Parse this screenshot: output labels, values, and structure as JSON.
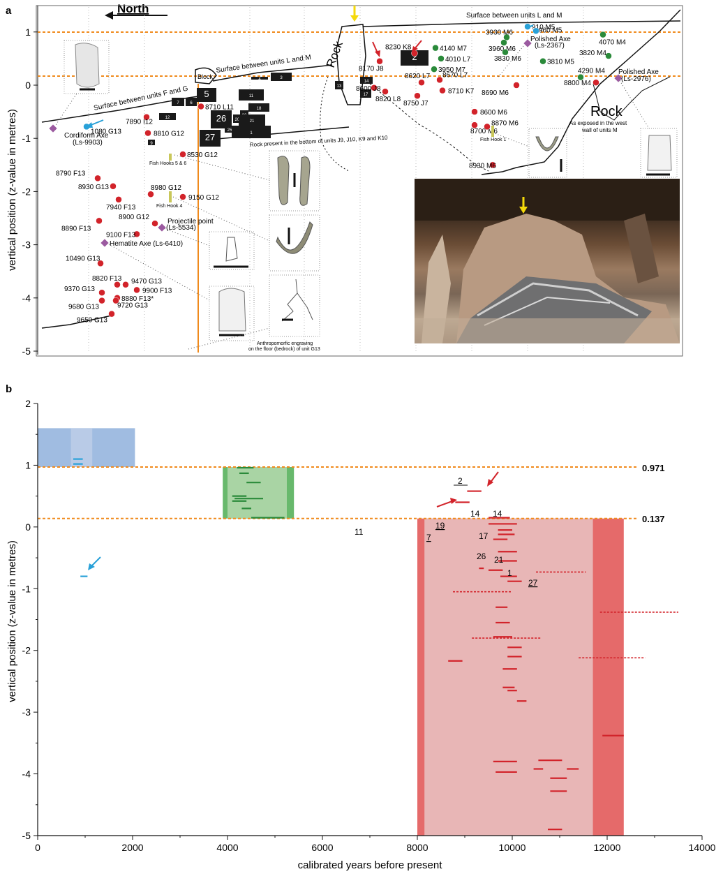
{
  "panel_a": {
    "label": "a",
    "north": "North",
    "ylabel": "vertical position (z-value in metres)",
    "yticks": [
      "1",
      "0",
      "-1",
      "-2",
      "-3",
      "-4",
      "-5"
    ],
    "surfaces": [
      "Surface between units L and M",
      "Surface between units L and M",
      "Surface between units F and G"
    ],
    "rock_labels": [
      "Rock",
      "Rock",
      "Block"
    ],
    "rock_note": "Rock present in the bottom of units J9, J10, K9 and K10",
    "rock_west": [
      "As exposed in the west",
      "wall of units M"
    ],
    "artifacts": [
      "Cordiform Axe",
      "(Ls-9903)",
      "Polished Axe",
      "(Ls-2367)",
      "Polished Axe",
      "(Ls-2976)",
      "Hematite Axe (Ls-6410)",
      "Projectile point",
      "(Ls-5534)",
      "Fish Hooks 5 & 6",
      "Fish Hook 4",
      "Fish Hook 1"
    ],
    "engraving": [
      "Anthropomorfic engraving",
      "on the floor (bedrock) of unit G13"
    ],
    "sample_labels": [
      "910 M5",
      "960 M5",
      "3930 M6",
      "3960 M6",
      "4070 M4",
      "3820 M4",
      "3830 M6",
      "3810 M5",
      "4290 M4",
      "8800 M4",
      "4140 M7",
      "4010 L7",
      "3950 M7",
      "8230 K8",
      "8170 J8",
      "8620 L7",
      "8670 L7",
      "8600 J8",
      "8820 L8",
      "8750 J7",
      "8710 K7",
      "8690 M6",
      "8600 M6",
      "8700 M6",
      "8870 M6",
      "8930 M6",
      "1080 G13",
      "7890 I12",
      "8810 G12",
      "8710 L11",
      "8530 G12",
      "8790 F13",
      "8930 G13",
      "7940 F13",
      "8980 G12",
      "9150 G12",
      "8900 G12",
      "8890 F13",
      "9100 F13",
      "10490 G13",
      "8820 F13",
      "9470 G13",
      "9370 G13",
      "9900 F13",
      "8880 F13*",
      "9680 G13",
      "9720 G13",
      "9650 G13"
    ],
    "block_numbers": [
      "4",
      "3",
      "13",
      "14",
      "17",
      "2",
      "11",
      "18",
      "12",
      "7",
      "6",
      "5",
      "22",
      "20",
      "21",
      "26",
      "25",
      "1",
      "9",
      "27"
    ]
  },
  "panel_b": {
    "label": "b",
    "ylabel": "vertical position (z-value in metres)",
    "xlabel": "calibrated years before present",
    "ref_lines": [
      "0.971",
      "0.137"
    ],
    "annotations": [
      "2",
      "14",
      "14",
      "19",
      "7",
      "17",
      "26",
      "21",
      "1",
      "27",
      "11"
    ]
  },
  "colors": {
    "red": "#d2232a",
    "green": "#2a8a3a",
    "blue": "#29a1d8",
    "orange": "#f08a1c",
    "purple": "#9b5aa0",
    "red_band": "#e8b6b6",
    "red_band_dark": "#e25a5a",
    "green_band": "#a9d4a4",
    "green_band_dark": "#58b15c",
    "blue_band": "#8fb0dc",
    "blue_band_light": "#b9cbe7"
  },
  "chart_data": [
    {
      "type": "scatter",
      "panel": "a",
      "title": "",
      "ylabel": "vertical position (z-value in metres)",
      "ylim": [
        -5,
        1.3
      ],
      "yticks": [
        1,
        0,
        -1,
        -2,
        -3,
        -4,
        -5
      ],
      "reference_lines_y": [
        0.971,
        0.137
      ],
      "series": [
        {
          "name": "",
          "color": "red",
          "points": [
            {
              "label": "8230 K8",
              "y": 0.6
            },
            {
              "label": "8170 J8",
              "y": 0.45
            },
            {
              "label": "8620 L7",
              "y": 0.05
            },
            {
              "label": "8670 L7",
              "y": 0.1
            },
            {
              "label": "8600 J8",
              "y": -0.05
            },
            {
              "label": "8820 L8",
              "y": -0.12
            },
            {
              "label": "8750 J7",
              "y": -0.2
            },
            {
              "label": "8710 K7",
              "y": -0.1
            },
            {
              "label": "8690 M6",
              "y": 0.0
            },
            {
              "label": "8600 M6",
              "y": -0.5
            },
            {
              "label": "8700 M6",
              "y": -0.75
            },
            {
              "label": "8870 M6",
              "y": -0.78
            },
            {
              "label": "8930 M6",
              "y": -1.5
            },
            {
              "label": "8800 M4",
              "y": 0.05
            },
            {
              "label": "7890 I12",
              "y": -0.6
            },
            {
              "label": "8810 G12",
              "y": -0.9
            },
            {
              "label": "8710 L11",
              "y": -0.4
            },
            {
              "label": "8530 G12",
              "y": -1.3
            },
            {
              "label": "8790 F13",
              "y": -1.75
            },
            {
              "label": "8930 G13",
              "y": -1.9
            },
            {
              "label": "7940 F13",
              "y": -2.15
            },
            {
              "label": "8980 G12",
              "y": -2.05
            },
            {
              "label": "9150 G12",
              "y": -2.1
            },
            {
              "label": "8900 G12",
              "y": -2.6
            },
            {
              "label": "8890 F13",
              "y": -2.55
            },
            {
              "label": "9100 F13",
              "y": -2.8
            },
            {
              "label": "10490 G13",
              "y": -3.35
            },
            {
              "label": "8820 F13",
              "y": -3.75
            },
            {
              "label": "9470 G13",
              "y": -3.75
            },
            {
              "label": "9370 G13",
              "y": -3.9
            },
            {
              "label": "9900 F13",
              "y": -3.85
            },
            {
              "label": "8880 F13*",
              "y": -4.0
            },
            {
              "label": "9680 G13",
              "y": -4.05
            },
            {
              "label": "9720 G13",
              "y": -4.05
            },
            {
              "label": "9650 G13",
              "y": -4.3
            }
          ]
        },
        {
          "name": "",
          "color": "green",
          "points": [
            {
              "label": "3930 M6",
              "y": 0.9
            },
            {
              "label": "3960 M6",
              "y": 0.8
            },
            {
              "label": "4070 M4",
              "y": 0.95
            },
            {
              "label": "3820 M4",
              "y": 0.55
            },
            {
              "label": "3830 M6",
              "y": 0.62
            },
            {
              "label": "3810 M5",
              "y": 0.45
            },
            {
              "label": "4290 M4",
              "y": 0.15
            },
            {
              "label": "4140 M7",
              "y": 0.7
            },
            {
              "label": "4010 L7",
              "y": 0.5
            },
            {
              "label": "3950 M7",
              "y": 0.3
            }
          ]
        },
        {
          "name": "",
          "color": "blue",
          "points": [
            {
              "label": "910 M5",
              "y": 1.1
            },
            {
              "label": "960 M5",
              "y": 1.02
            },
            {
              "label": "1080 G13",
              "y": -0.78
            }
          ]
        }
      ]
    },
    {
      "type": "scatter",
      "panel": "b",
      "title": "",
      "xlabel": "calibrated years before present",
      "ylabel": "vertical position (z-value in metres)",
      "xlim": [
        0,
        14000
      ],
      "ylim": [
        -5,
        2
      ],
      "xticks": [
        0,
        2000,
        4000,
        6000,
        8000,
        10000,
        12000,
        14000
      ],
      "yticks": [
        2,
        1,
        0,
        -1,
        -2,
        -3,
        -4,
        -5
      ],
      "reference_lines_y": [
        0.971,
        0.137
      ],
      "bands": [
        {
          "color": "blue",
          "x0": 0,
          "x1": 2050,
          "y0": 0.971,
          "y1": 1.6,
          "inner_x0": 700,
          "inner_x1": 1150
        },
        {
          "color": "green",
          "x0": 3900,
          "x1": 5400,
          "y0": 0.137,
          "y1": 0.971,
          "inner_x0": 4000,
          "inner_x1": 5250
        },
        {
          "color": "red",
          "x0": 8000,
          "x1": 12350,
          "y0": -5,
          "y1": 0.137,
          "inner_x0": 8150,
          "inner_x1": 11700
        }
      ],
      "series": [
        {
          "name": "",
          "color": "blue",
          "ranges": [
            {
              "x0": 750,
              "x1": 950,
              "y": 1.1
            },
            {
              "x0": 750,
              "x1": 950,
              "y": 1.02
            },
            {
              "x0": 900,
              "x1": 1050,
              "y": -0.8
            }
          ]
        },
        {
          "name": "",
          "color": "green",
          "ranges": [
            {
              "x0": 4200,
              "x1": 4550,
              "y": 0.96
            },
            {
              "x0": 4250,
              "x1": 4450,
              "y": 0.87
            },
            {
              "x0": 4400,
              "x1": 4700,
              "y": 0.72
            },
            {
              "x0": 4100,
              "x1": 4400,
              "y": 0.5
            },
            {
              "x0": 4150,
              "x1": 4750,
              "y": 0.46
            },
            {
              "x0": 4100,
              "x1": 4400,
              "y": 0.42
            },
            {
              "x0": 4300,
              "x1": 4500,
              "y": 0.3
            },
            {
              "x0": 4500,
              "x1": 5200,
              "y": 0.15
            }
          ]
        },
        {
          "name": "",
          "color": "red",
          "ranges": [
            {
              "x0": 9050,
              "x1": 9350,
              "y": 0.58
            },
            {
              "x0": 8800,
              "x1": 9100,
              "y": 0.4
            },
            {
              "x0": 9500,
              "x1": 9950,
              "y": 0.15
            },
            {
              "x0": 9500,
              "x1": 10100,
              "y": 0.05
            },
            {
              "x0": 9700,
              "x1": 10000,
              "y": -0.05
            },
            {
              "x0": 9700,
              "x1": 10050,
              "y": -0.12
            },
            {
              "x0": 9600,
              "x1": 9900,
              "y": -0.2
            },
            {
              "x0": 9700,
              "x1": 10100,
              "y": -0.4
            },
            {
              "x0": 9700,
              "x1": 10100,
              "y": -0.55
            },
            {
              "x0": 9500,
              "x1": 9800,
              "y": -0.7
            },
            {
              "x0": 9750,
              "x1": 10100,
              "y": -0.8
            },
            {
              "x0": 9900,
              "x1": 10200,
              "y": -0.88
            },
            {
              "x0": 9650,
              "x1": 9900,
              "y": -1.3
            },
            {
              "x0": 9650,
              "x1": 9950,
              "y": -1.55
            },
            {
              "x0": 9600,
              "x1": 10000,
              "y": -1.78
            },
            {
              "x0": 9900,
              "x1": 10200,
              "y": -1.95
            },
            {
              "x0": 9900,
              "x1": 10200,
              "y": -2.1
            },
            {
              "x0": 8650,
              "x1": 8950,
              "y": -2.17
            },
            {
              "x0": 9800,
              "x1": 10100,
              "y": -2.3
            },
            {
              "x0": 9800,
              "x1": 10050,
              "y": -2.6
            },
            {
              "x0": 9900,
              "x1": 10100,
              "y": -2.65
            },
            {
              "x0": 10100,
              "x1": 10300,
              "y": -2.82
            },
            {
              "x0": 11900,
              "x1": 12350,
              "y": -3.38
            },
            {
              "x0": 9600,
              "x1": 10100,
              "y": -3.8
            },
            {
              "x0": 10550,
              "x1": 11050,
              "y": -3.78
            },
            {
              "x0": 11150,
              "x1": 11400,
              "y": -3.92
            },
            {
              "x0": 9650,
              "x1": 10100,
              "y": -3.97
            },
            {
              "x0": 10450,
              "x1": 10650,
              "y": -3.92
            },
            {
              "x0": 10800,
              "x1": 11150,
              "y": -4.07
            },
            {
              "x0": 10800,
              "x1": 11150,
              "y": -4.28
            },
            {
              "x0": 10750,
              "x1": 11050,
              "y": -4.9
            },
            {
              "x0": 9300,
              "x1": 9400,
              "y": -0.67
            }
          ]
        },
        {
          "name": "",
          "color": "red",
          "style": "dashed",
          "ranges": [
            {
              "x0": 10500,
              "x1": 11550,
              "y": -0.73
            },
            {
              "x0": 8750,
              "x1": 10000,
              "y": -1.05
            },
            {
              "x0": 11850,
              "x1": 13500,
              "y": -1.38
            },
            {
              "x0": 9150,
              "x1": 10600,
              "y": -1.8
            },
            {
              "x0": 11400,
              "x1": 12800,
              "y": -2.12
            }
          ]
        }
      ]
    }
  ]
}
